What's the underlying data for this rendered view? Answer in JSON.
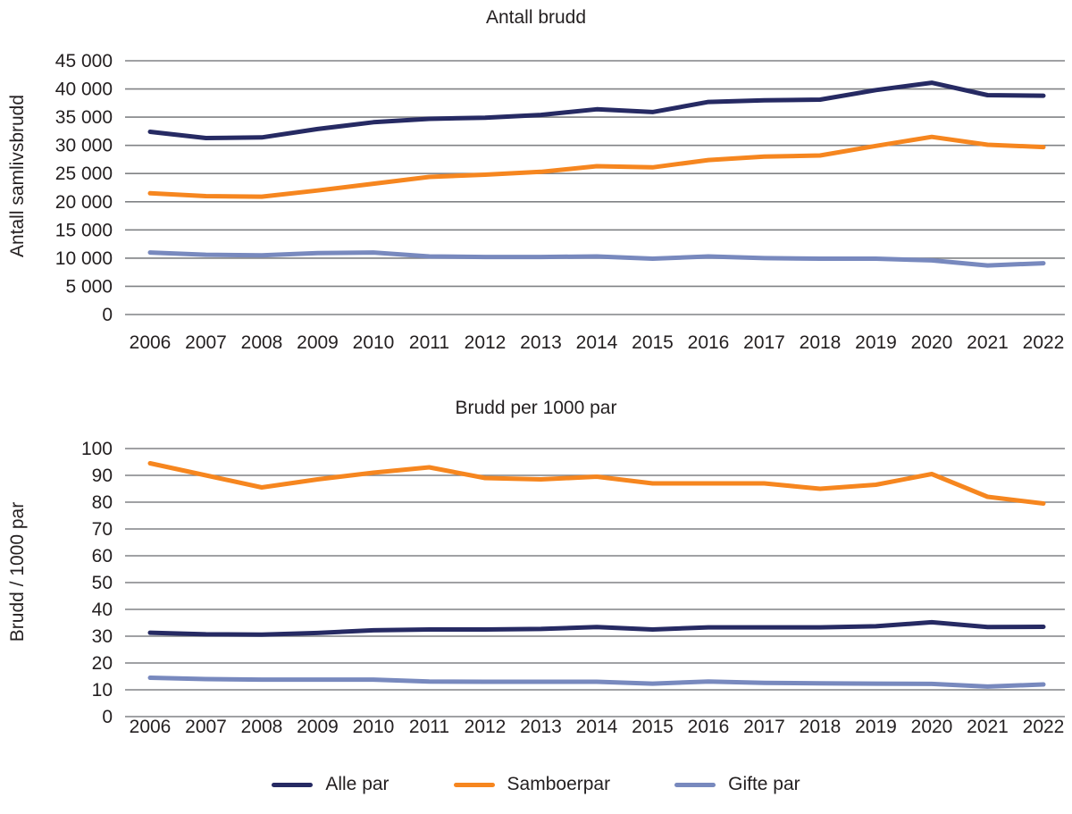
{
  "page": {
    "background": "#ffffff",
    "text_color": "#231f20",
    "gridline_color": "#808285"
  },
  "legend": {
    "items": [
      {
        "label": "Alle par",
        "color": "#262a63"
      },
      {
        "label": "Samboerpar",
        "color": "#f6861f"
      },
      {
        "label": "Gifte par",
        "color": "#7889be"
      }
    ]
  },
  "chart_data": [
    {
      "type": "line",
      "title": "Antall brudd",
      "xlabel": "",
      "ylabel": "Antall samlivsbrudd",
      "grid": true,
      "legend_position": "shared-bottom",
      "x": [
        2006,
        2007,
        2008,
        2009,
        2010,
        2011,
        2012,
        2013,
        2014,
        2015,
        2016,
        2017,
        2018,
        2019,
        2020,
        2021,
        2022
      ],
      "ylim": [
        0,
        45000
      ],
      "ytick_step": 5000,
      "ytick_labels_top_to_bottom": [
        "45 000",
        "40 000",
        "35 000",
        "30 000",
        "25 000",
        "20 000",
        "15 000",
        "10 000",
        "5 000",
        "0"
      ],
      "series": [
        {
          "name": "Alle par",
          "color": "#262a63",
          "values": [
            32400,
            31300,
            31400,
            32900,
            34100,
            34700,
            34900,
            35400,
            36400,
            35900,
            37700,
            38000,
            38100,
            39800,
            41100,
            38900,
            38800
          ]
        },
        {
          "name": "Samboerpar",
          "color": "#f6861f",
          "values": [
            21500,
            21000,
            20900,
            22000,
            23200,
            24400,
            24800,
            25300,
            26300,
            26100,
            27400,
            28000,
            28200,
            29900,
            31500,
            30100,
            29700
          ]
        },
        {
          "name": "Gifte par",
          "color": "#7889be",
          "values": [
            11000,
            10600,
            10500,
            10900,
            11000,
            10300,
            10200,
            10200,
            10300,
            9900,
            10300,
            10000,
            9900,
            9900,
            9600,
            8700,
            9100
          ]
        }
      ]
    },
    {
      "type": "line",
      "title": "Brudd per 1000 par",
      "xlabel": "",
      "ylabel": "Brudd / 1000 par",
      "grid": true,
      "legend_position": "shared-bottom",
      "x": [
        2006,
        2007,
        2008,
        2009,
        2010,
        2011,
        2012,
        2013,
        2014,
        2015,
        2016,
        2017,
        2018,
        2019,
        2020,
        2021,
        2022
      ],
      "ylim": [
        0,
        100
      ],
      "ytick_step": 10,
      "ytick_labels_top_to_bottom": [
        "100",
        "90",
        "80",
        "70",
        "60",
        "50",
        "40",
        "30",
        "20",
        "10",
        "0"
      ],
      "series": [
        {
          "name": "Alle par",
          "color": "#262a63",
          "values": [
            31.3,
            30.7,
            30.6,
            31.2,
            32.2,
            32.5,
            32.5,
            32.7,
            33.4,
            32.5,
            33.3,
            33.3,
            33.3,
            33.7,
            35.2,
            33.4,
            33.5
          ]
        },
        {
          "name": "Samboerpar",
          "color": "#f6861f",
          "values": [
            94.5,
            90.0,
            85.5,
            88.5,
            91.0,
            93.0,
            89.0,
            88.5,
            89.5,
            87.0,
            87.0,
            87.0,
            85.0,
            86.5,
            90.5,
            82.0,
            79.5
          ]
        },
        {
          "name": "Gifte par",
          "color": "#7889be",
          "values": [
            14.5,
            14.0,
            13.8,
            13.8,
            13.8,
            13.1,
            13.0,
            13.0,
            13.0,
            12.3,
            13.1,
            12.6,
            12.4,
            12.3,
            12.2,
            11.2,
            12.0
          ]
        }
      ]
    }
  ]
}
